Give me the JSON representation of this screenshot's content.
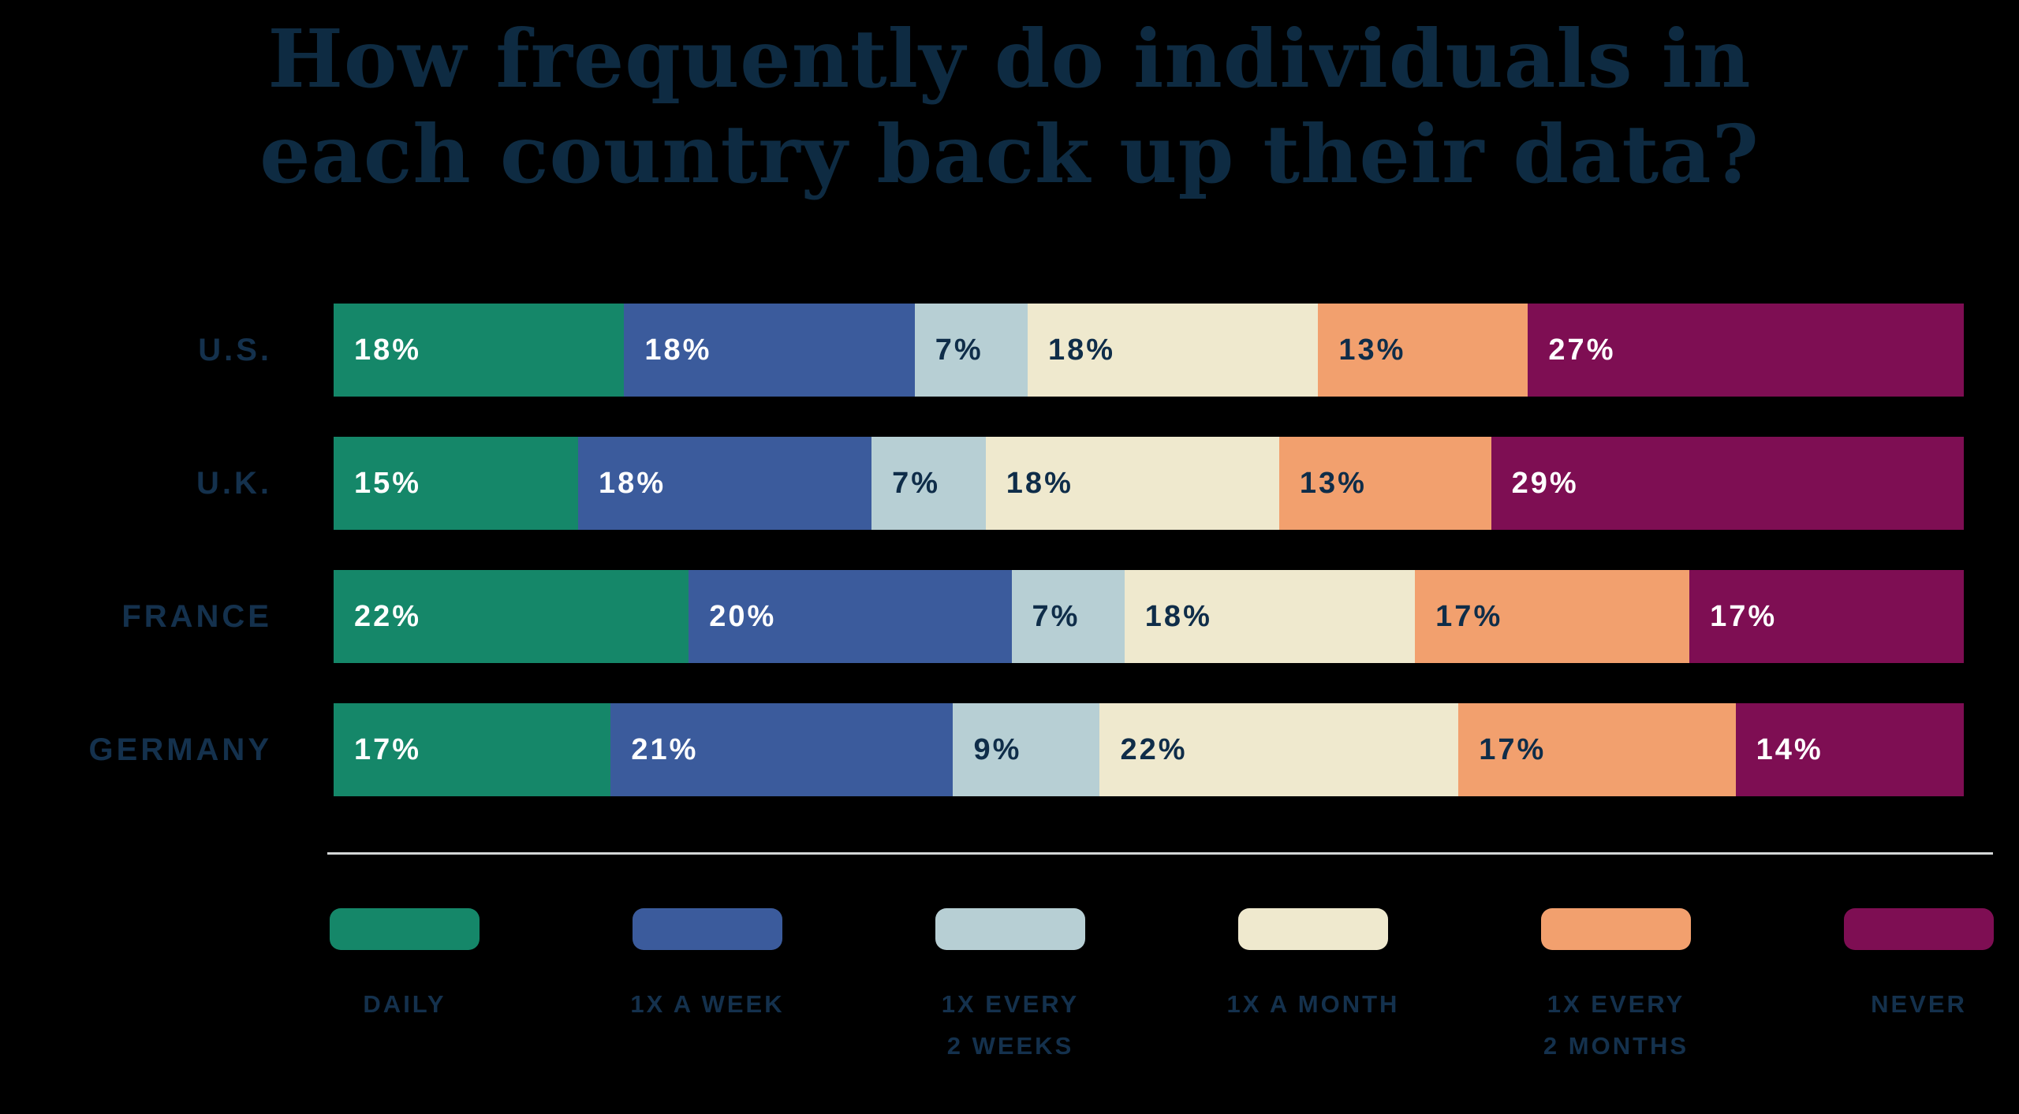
{
  "title": {
    "line1": "How frequently do individuals in",
    "line2": "each country back up their data?"
  },
  "colors": {
    "background": "#000000",
    "title_text": "#0e2b42",
    "label_text": "#14314d",
    "separator": "#d4d7d7",
    "value_on_dark": "#ffffff",
    "value_on_light": "#0f2d49"
  },
  "chart_data": {
    "type": "bar",
    "orientation": "horizontal-stacked",
    "unit": "%",
    "title": "How frequently do individuals in each country back up their data?",
    "categories": [
      "U.S.",
      "U.K.",
      "FRANCE",
      "GERMANY"
    ],
    "series": [
      {
        "name": "DAILY",
        "color": "#158769",
        "text_tone": "light",
        "values": [
          18,
          15,
          22,
          17
        ]
      },
      {
        "name": "1X A WEEK",
        "color": "#3b5b9c",
        "text_tone": "light",
        "values": [
          18,
          18,
          20,
          21
        ]
      },
      {
        "name": "1X EVERY 2 WEEKS",
        "color": "#b7cfd4",
        "text_tone": "dark",
        "values": [
          7,
          7,
          7,
          9
        ]
      },
      {
        "name": "1X A MONTH",
        "color": "#efe9ce",
        "text_tone": "dark",
        "values": [
          18,
          18,
          18,
          22
        ]
      },
      {
        "name": "1X EVERY 2 MONTHS",
        "color": "#f2a06e",
        "text_tone": "dark",
        "values": [
          13,
          13,
          17,
          17
        ]
      },
      {
        "name": "NEVER",
        "color": "#7e0e53",
        "text_tone": "light",
        "values": [
          27,
          29,
          17,
          14
        ]
      }
    ],
    "legend": [
      {
        "lines": [
          "DAILY"
        ]
      },
      {
        "lines": [
          "1X A WEEK"
        ]
      },
      {
        "lines": [
          "1X EVERY",
          "2 WEEKS"
        ]
      },
      {
        "lines": [
          "1X A MONTH"
        ]
      },
      {
        "lines": [
          "1X EVERY",
          "2 MONTHS"
        ]
      },
      {
        "lines": [
          "NEVER"
        ]
      }
    ],
    "legend_position": "bottom",
    "value_labels": "inside-start, percent",
    "axis": "none, bars normalized to full width"
  }
}
